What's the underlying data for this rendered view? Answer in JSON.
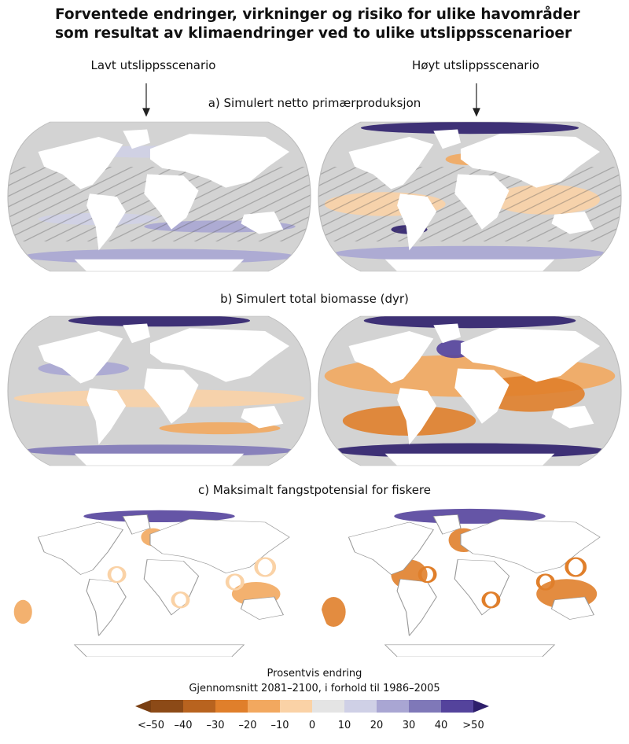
{
  "title": [
    "Forventede endringer, virkninger og risiko for ulike havområder",
    "som resultat av klimaendringer ved to ulike utslippsscenarioer"
  ],
  "scenarios": {
    "low": "Lavt utslippsscenario",
    "high": "Høyt utslippsscenario"
  },
  "panels": [
    {
      "title": "a) Simulert netto primærproduksjon"
    },
    {
      "title": "b) Simulert total biomasse (dyr)"
    },
    {
      "title": "c) Maksimalt fangstpotensial for fiskere"
    }
  ],
  "legend": {
    "title": "Prosentvis endring",
    "subtitle": "Gjennomsnitt 2081–2100, i forhold til 1986–2005",
    "labels": [
      "<–50",
      "–40",
      "–30",
      "–20",
      "–10",
      "0",
      "10",
      "20",
      "30",
      "40",
      ">50"
    ],
    "colors": [
      "#7a3f12",
      "#8c4a17",
      "#b8631f",
      "#e07f2b",
      "#f2a85f",
      "#fad2a6",
      "#e4e4e4",
      "#cfd0e6",
      "#a9a6d3",
      "#7f78b8",
      "#54439c",
      "#2e1f6b"
    ]
  }
}
